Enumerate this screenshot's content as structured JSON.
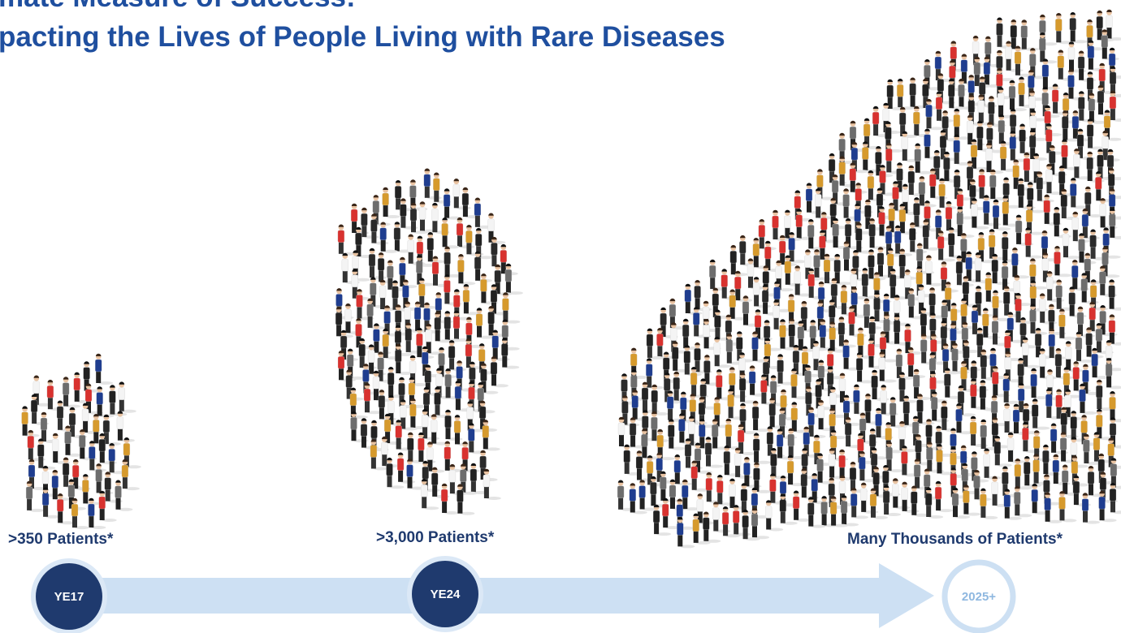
{
  "header": {
    "title_line1": "mate Measure of Success:",
    "title_line2": "pacting the Lives of People Living with Rare Diseases"
  },
  "milestones": [
    {
      "label": "YE17",
      "caption": ">350 Patients*"
    },
    {
      "label": "YE24",
      "caption": ">3,000 Patients*"
    },
    {
      "label": "2025+",
      "caption": "Many Thousands of Patients*"
    }
  ]
}
